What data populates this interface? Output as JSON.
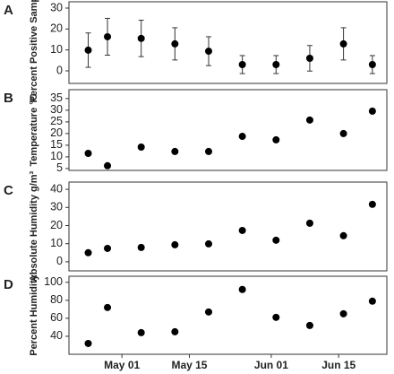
{
  "chart_data": [
    {
      "type": "scatter",
      "panel_label": "A",
      "ylabel": "Percent Positive Samples",
      "x": [
        "04-24",
        "04-28",
        "05-05",
        "05-12",
        "05-19",
        "05-26",
        "06-02",
        "06-09",
        "06-16",
        "06-22"
      ],
      "values": [
        9.9,
        16.3,
        15.5,
        12.9,
        9.4,
        3,
        3,
        6,
        12.9,
        3
      ],
      "errors": [
        8.2,
        8.8,
        8.7,
        7.7,
        6.9,
        4.3,
        4.3,
        6.1,
        7.7,
        4.3
      ],
      "color": "#000000",
      "xlim": [
        "04-20",
        "06-25"
      ],
      "ylim": [
        -6,
        33
      ],
      "yticks": [
        0,
        10,
        20,
        30
      ]
    },
    {
      "type": "scatter",
      "panel_label": "B",
      "ylabel": "Temperature °C",
      "x": [
        "04-24",
        "04-28",
        "05-05",
        "05-12",
        "05-19",
        "05-26",
        "06-02",
        "06-09",
        "06-16",
        "06-22"
      ],
      "values": [
        11.5,
        6.2,
        14.2,
        12.3,
        12.3,
        18.8,
        17.3,
        25.8,
        20,
        29.6
      ],
      "color": "#000000",
      "xlim": [
        "04-20",
        "06-25"
      ],
      "ylim": [
        4.2,
        38.8
      ],
      "yticks": [
        5,
        10,
        15,
        20,
        25,
        30,
        35
      ]
    },
    {
      "type": "scatter",
      "panel_label": "C",
      "ylabel": "Absolute Humidity g/m³",
      "x": [
        "04-24",
        "04-28",
        "05-05",
        "05-12",
        "05-19",
        "05-26",
        "06-02",
        "06-09",
        "06-16",
        "06-22"
      ],
      "values": [
        5,
        7.4,
        7.9,
        9.4,
        9.9,
        17.3,
        11.9,
        21.3,
        14.4,
        31.7
      ],
      "color": "#000000",
      "xlim": [
        "04-20",
        "06-25"
      ],
      "ylim": [
        -5,
        44
      ],
      "yticks": [
        0,
        10,
        20,
        30,
        40
      ]
    },
    {
      "type": "scatter",
      "panel_label": "D",
      "ylabel": "Percent Humidity",
      "x": [
        "04-24",
        "04-28",
        "05-05",
        "05-12",
        "05-19",
        "05-26",
        "06-02",
        "06-09",
        "06-16",
        "06-22"
      ],
      "values": [
        32,
        72,
        44,
        45,
        67,
        92,
        61,
        52,
        65,
        79
      ],
      "color": "#000000",
      "xlim": [
        "04-20",
        "06-25"
      ],
      "ylim": [
        20,
        106.7
      ],
      "yticks": [
        40,
        60,
        80,
        100
      ],
      "xticks": [
        {
          "value": "05-01",
          "label": "May 01"
        },
        {
          "value": "05-15",
          "label": "May 15"
        },
        {
          "value": "06-01",
          "label": "Jun 01"
        },
        {
          "value": "06-15",
          "label": "Jun 15"
        }
      ]
    }
  ]
}
